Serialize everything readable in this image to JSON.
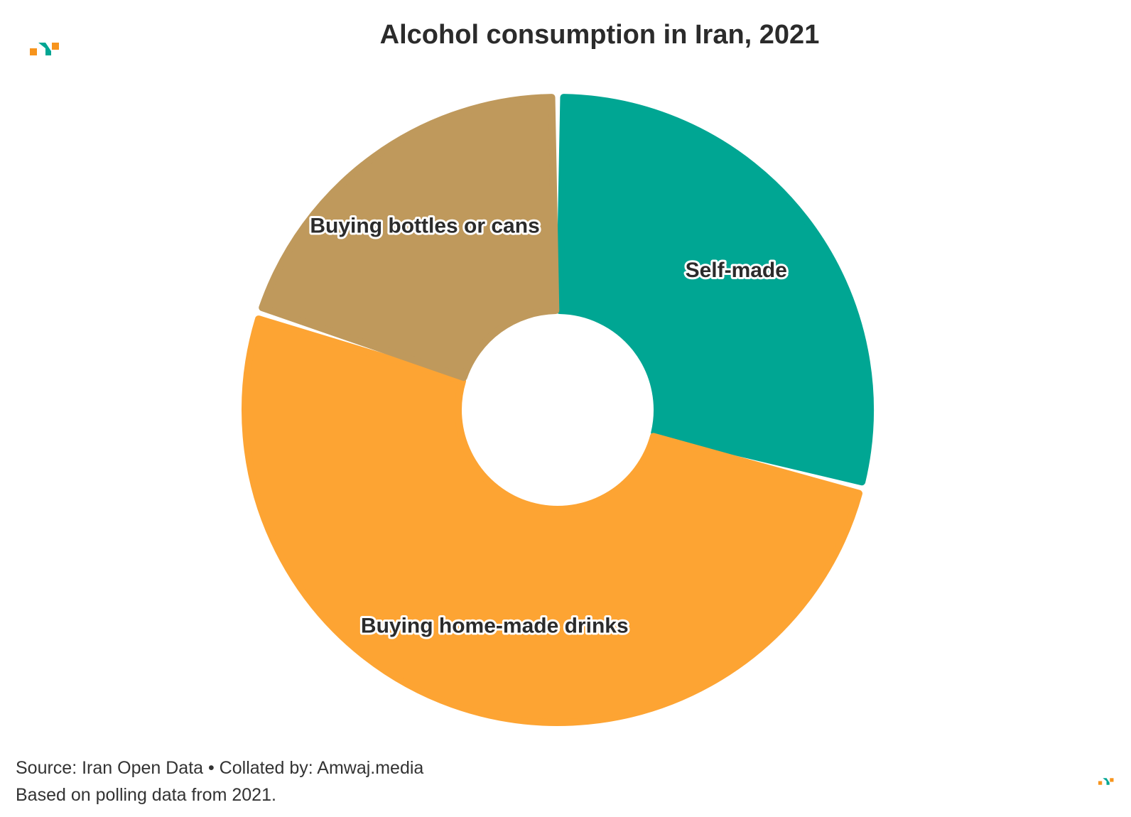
{
  "header": {
    "title": "Alcohol consumption in Iran, 2021"
  },
  "footer": {
    "source": "Source: Iran Open Data • Collated by: Amwaj.media",
    "note": "Based on polling data from 2021."
  },
  "colors": {
    "logo_orange": "#f7941d",
    "logo_teal": "#00a693"
  },
  "chart_data": {
    "type": "pie",
    "title": "Alcohol consumption in Iran, 2021",
    "variant": "donut",
    "series": [
      {
        "categories": [
          "Self-made",
          "Buying home-made drinks",
          "Buying bottles or cans"
        ],
        "values": [
          29,
          51,
          20
        ],
        "colors": [
          "#00a693",
          "#fda433",
          "#bf995c"
        ]
      }
    ],
    "legend": "none",
    "labels": "on-slices"
  }
}
